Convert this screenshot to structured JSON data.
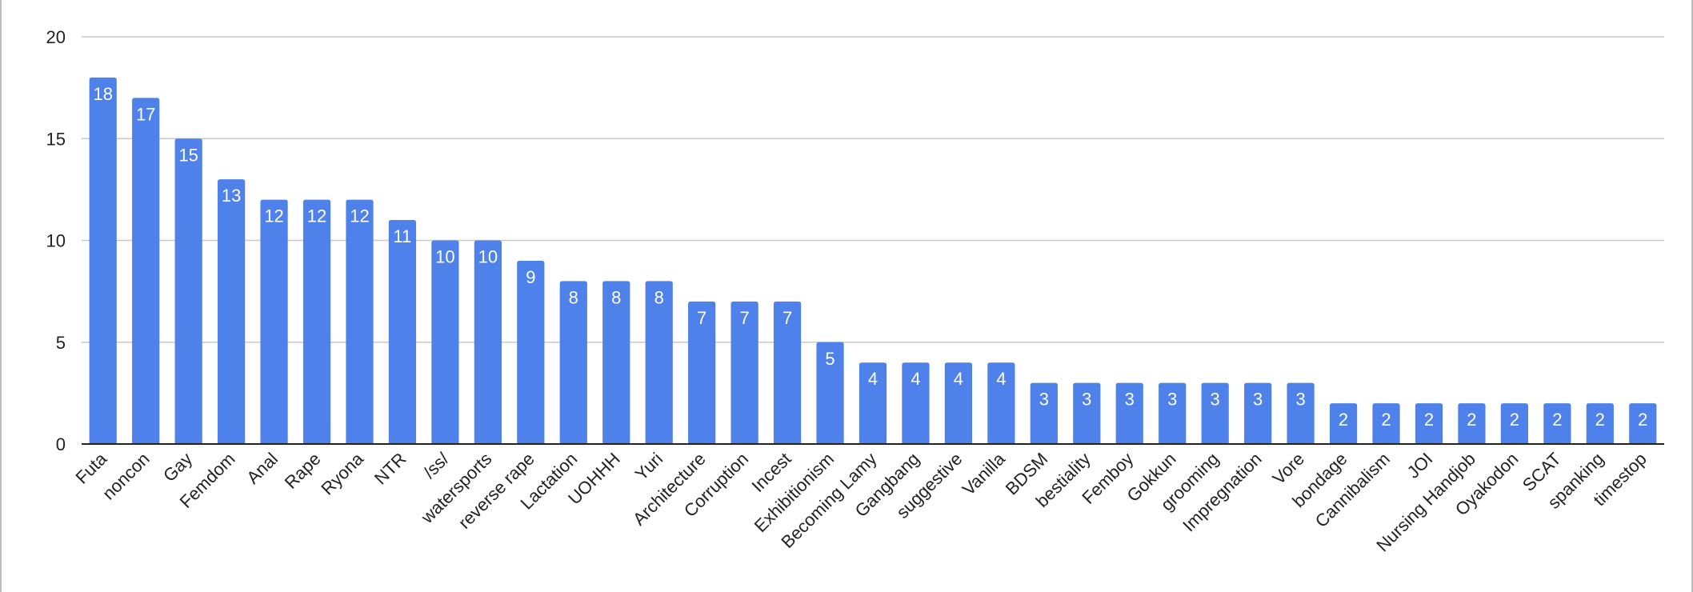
{
  "chart_data": {
    "type": "bar",
    "title": "",
    "xlabel": "",
    "ylabel": "",
    "ylim": [
      0,
      20
    ],
    "yticks": [
      0,
      5,
      10,
      15,
      20
    ],
    "grid": true,
    "legend": "none",
    "bar_color": "#4f81ea",
    "categories": [
      "Futa",
      "noncon",
      "Gay",
      "Femdom",
      "Anal",
      "Rape",
      "Ryona",
      "NTR",
      "/ss/",
      "watersports",
      "reverse rape",
      "Lactation",
      "UOHHH",
      "Yuri",
      "Architecture",
      "Corruption",
      "Incest",
      "Exhibitionism",
      "Becoming Lamy",
      "Gangbang",
      "suggestive",
      "Vanilla",
      "BDSM",
      "bestiality",
      "Femboy",
      "Gokkun",
      "grooming",
      "Impregnation",
      "Vore",
      "bondage",
      "Cannibalism",
      "JOI",
      "Nursing Handjob",
      "Oyakodon",
      "SCAT",
      "spanking",
      "timestop"
    ],
    "values": [
      18,
      17,
      15,
      13,
      12,
      12,
      12,
      11,
      10,
      10,
      9,
      8,
      8,
      8,
      7,
      7,
      7,
      5,
      4,
      4,
      4,
      4,
      3,
      3,
      3,
      3,
      3,
      3,
      3,
      2,
      2,
      2,
      2,
      2,
      2,
      2,
      2
    ],
    "data_labels": [
      "18",
      "17",
      "15",
      "13",
      "12",
      "12",
      "12",
      "11",
      "10",
      "10",
      "9",
      "8",
      "8",
      "8",
      "7",
      "7",
      "7",
      "5",
      "4",
      "4",
      "4",
      "4",
      "3",
      "3",
      "3",
      "3",
      "3",
      "3",
      "3",
      "2",
      "2",
      "2",
      "2",
      "2",
      "2",
      "2",
      "2"
    ]
  }
}
